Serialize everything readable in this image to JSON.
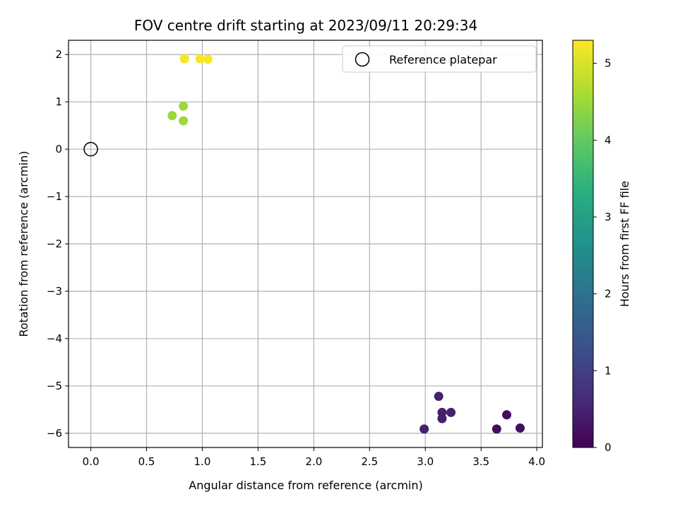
{
  "chart_data": {
    "type": "scatter",
    "title": "FOV centre drift starting at 2023/09/11 20:29:34",
    "xlabel": "Angular distance from reference (arcmin)",
    "ylabel": "Rotation from reference (arcmin)",
    "xlim": [
      -0.2,
      4.05
    ],
    "ylim": [
      -6.3,
      2.3
    ],
    "xticks": [
      "0.0",
      "0.5",
      "1.0",
      "1.5",
      "2.0",
      "2.5",
      "3.0",
      "3.5",
      "4.0"
    ],
    "yticks": [
      "2",
      "1",
      "0",
      "−1",
      "−2",
      "−3",
      "−4",
      "−5",
      "−6"
    ],
    "grid": true,
    "legend": {
      "placement": "top-right",
      "entries": [
        "Reference platepar"
      ]
    },
    "reference_point": {
      "x": 0.0,
      "y": 0.0
    },
    "colorbar": {
      "label": "Hours from first FF file",
      "range": [
        0,
        5.3
      ],
      "ticks": [
        "0",
        "1",
        "2",
        "3",
        "4",
        "5"
      ],
      "colormap": "viridis"
    },
    "points": [
      {
        "x": 2.99,
        "y": -5.91,
        "hours": 0.45
      },
      {
        "x": 3.12,
        "y": -5.22,
        "hours": 0.45
      },
      {
        "x": 3.15,
        "y": -5.56,
        "hours": 0.45
      },
      {
        "x": 3.15,
        "y": -5.69,
        "hours": 0.45
      },
      {
        "x": 3.23,
        "y": -5.56,
        "hours": 0.45
      },
      {
        "x": 3.64,
        "y": -5.91,
        "hours": 0.2
      },
      {
        "x": 3.73,
        "y": -5.61,
        "hours": 0.2
      },
      {
        "x": 3.85,
        "y": -5.89,
        "hours": 0.2
      },
      {
        "x": 0.73,
        "y": 0.71,
        "hours": 4.5
      },
      {
        "x": 0.83,
        "y": 0.91,
        "hours": 4.5
      },
      {
        "x": 0.83,
        "y": 0.6,
        "hours": 4.5
      },
      {
        "x": 0.84,
        "y": 1.91,
        "hours": 5.25
      },
      {
        "x": 0.98,
        "y": 1.91,
        "hours": 5.25
      },
      {
        "x": 1.05,
        "y": 1.9,
        "hours": 5.25
      }
    ]
  }
}
